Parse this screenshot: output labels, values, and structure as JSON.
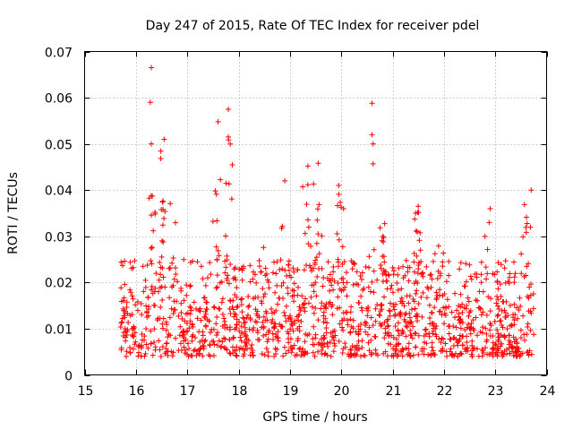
{
  "chart_data": {
    "type": "scatter",
    "title": "Day 247 of 2015, Rate Of TEC Index for receiver pdel",
    "xlabel": "GPS time / hours",
    "ylabel": "ROTI / TECUs",
    "xlim": [
      15,
      24
    ],
    "ylim": [
      0,
      0.07
    ],
    "xticks": [
      "15",
      "16",
      "17",
      "18",
      "19",
      "20",
      "21",
      "22",
      "23",
      "24"
    ],
    "yticks": [
      "0",
      "0.01",
      "0.02",
      "0.03",
      "0.04",
      "0.05",
      "0.06",
      "0.07"
    ],
    "grid": true,
    "marker": "+",
    "color": "#ff0000",
    "series": [
      {
        "name": "ROTI",
        "x_range": [
          15.7,
          23.75
        ],
        "baseline_range": [
          0.004,
          0.025
        ],
        "notable_points": [
          {
            "x": 16.3,
            "y": 0.0665
          },
          {
            "x": 16.28,
            "y": 0.059
          },
          {
            "x": 16.55,
            "y": 0.051
          },
          {
            "x": 16.3,
            "y": 0.05
          },
          {
            "x": 17.6,
            "y": 0.0548
          },
          {
            "x": 17.8,
            "y": 0.0575
          },
          {
            "x": 17.8,
            "y": 0.0515
          },
          {
            "x": 20.6,
            "y": 0.0588
          },
          {
            "x": 20.6,
            "y": 0.052
          },
          {
            "x": 20.62,
            "y": 0.05
          },
          {
            "x": 20.62,
            "y": 0.0457
          },
          {
            "x": 19.55,
            "y": 0.0458
          },
          {
            "x": 19.35,
            "y": 0.0452
          },
          {
            "x": 19.95,
            "y": 0.041
          },
          {
            "x": 18.9,
            "y": 0.042
          },
          {
            "x": 21.5,
            "y": 0.0365
          },
          {
            "x": 22.9,
            "y": 0.036
          },
          {
            "x": 23.7,
            "y": 0.04
          }
        ],
        "bursts": [
          {
            "center": 16.3,
            "peak": 0.04
          },
          {
            "center": 16.55,
            "peak": 0.05
          },
          {
            "center": 16.75,
            "peak": 0.038
          },
          {
            "center": 17.6,
            "peak": 0.047
          },
          {
            "center": 17.8,
            "peak": 0.052
          },
          {
            "center": 18.5,
            "peak": 0.033
          },
          {
            "center": 18.85,
            "peak": 0.036
          },
          {
            "center": 19.35,
            "peak": 0.043
          },
          {
            "center": 19.55,
            "peak": 0.045
          },
          {
            "center": 19.95,
            "peak": 0.04
          },
          {
            "center": 20.55,
            "peak": 0.03
          },
          {
            "center": 20.85,
            "peak": 0.034
          },
          {
            "center": 21.5,
            "peak": 0.036
          },
          {
            "center": 21.9,
            "peak": 0.03
          },
          {
            "center": 22.85,
            "peak": 0.036
          },
          {
            "center": 23.6,
            "peak": 0.04
          }
        ]
      }
    ]
  }
}
